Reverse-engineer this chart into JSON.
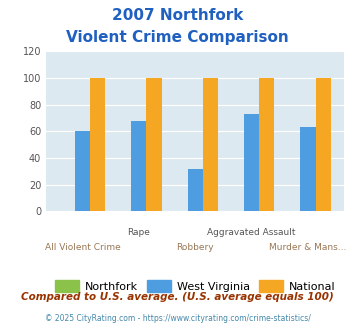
{
  "title_line1": "2007 Northfork",
  "title_line2": "Violent Crime Comparison",
  "categories": [
    "All Violent Crime",
    "Rape",
    "Robbery",
    "Aggravated Assault",
    "Murder & Mans..."
  ],
  "x_labels_top": [
    "",
    "Rape",
    "",
    "Aggravated Assault",
    ""
  ],
  "x_labels_bottom": [
    "All Violent Crime",
    "",
    "Robbery",
    "",
    "Murder & Mans..."
  ],
  "northfork_values": [
    0,
    0,
    0,
    0,
    0
  ],
  "west_virginia_values": [
    60,
    68,
    32,
    73,
    63
  ],
  "national_values": [
    100,
    100,
    100,
    100,
    100
  ],
  "northfork_color": "#8bc34a",
  "west_virginia_color": "#4d9de0",
  "national_color": "#f5a623",
  "ylim": [
    0,
    120
  ],
  "yticks": [
    0,
    20,
    40,
    60,
    80,
    100,
    120
  ],
  "plot_bg_color": "#dce9f0",
  "title_color": "#2060c0",
  "footer_text": "Compared to U.S. average. (U.S. average equals 100)",
  "footer_color": "#993300",
  "copyright_text": "© 2025 CityRating.com - https://www.cityrating.com/crime-statistics/",
  "copyright_color": "#4488aa",
  "legend_labels": [
    "Northfork",
    "West Virginia",
    "National"
  ],
  "bar_width": 0.27
}
